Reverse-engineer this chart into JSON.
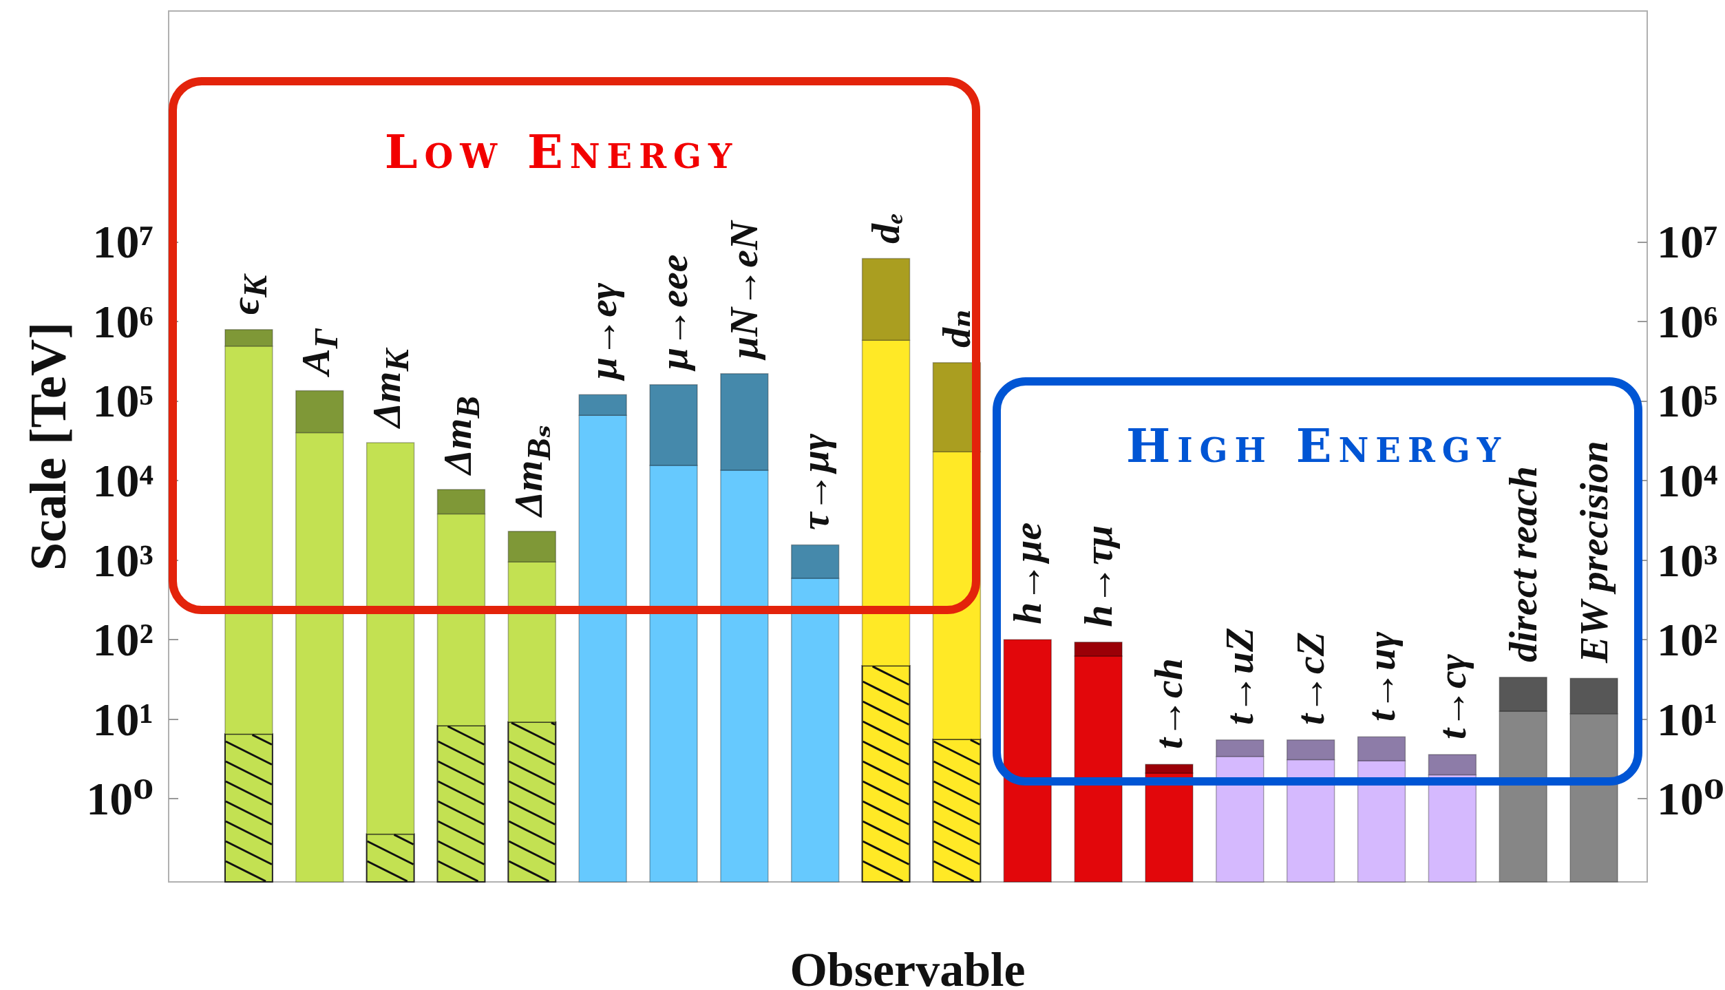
{
  "chart_data": {
    "type": "bar",
    "xlabel": "Observable",
    "ylabel": "Scale [TeV]",
    "categories": [
      "ϵ$_{K}$",
      "A$_{Γ}$",
      "Δm$_{K}$",
      "Δm$_{B}$",
      "Δm$_{Bₛ}$",
      "μ→eγ",
      "μ→eee",
      "μN→eN",
      "τ→μγ",
      "dₑ",
      "dₙ",
      "h→μe",
      "h→τμ",
      "t→ch",
      "t→uZ",
      "t→cZ",
      "t→uγ",
      "t→cγ",
      "direct reach",
      "EW precision"
    ],
    "stacked": true,
    "series": [
      {
        "colors": [
          "#c3e152",
          null,
          "#c3e152",
          "#c3e152",
          "#c3e152",
          null,
          null,
          null,
          null,
          "#ffe926",
          "#ffe926",
          null,
          null,
          null,
          null,
          null,
          null,
          null,
          null,
          null
        ],
        "values": [
          6.5,
          null,
          0.36,
          8.3,
          9.2,
          null,
          null,
          null,
          null,
          47,
          5.6,
          null,
          null,
          null,
          null,
          null,
          null,
          null,
          null,
          null
        ]
      },
      {
        "colors": [
          "#c3e152",
          "#c3e152",
          "#c3e152",
          "#c3e152",
          "#c3e152",
          "#66c9fe",
          "#66c9fe",
          "#66c9fe",
          "#66c9fe",
          "#ffe926",
          "#ffe926",
          "#e2070b",
          "#e2070b",
          "#e2070b",
          "#d5b9fe",
          "#d5b9fe",
          "#d5b9fe",
          "#d5b9fe",
          "#868686",
          "#868686"
        ],
        "values": [
          490000,
          40000,
          30000,
          3800,
          940,
          66000,
          15500,
          13500,
          590,
          580000,
          23000,
          100,
          62,
          2.1,
          3.4,
          3.1,
          3.0,
          2.0,
          12.6,
          11.7
        ]
      },
      {
        "colors": [
          "#7f9837",
          "#7f9837",
          null,
          "#7f9837",
          "#7f9837",
          "#4589ab",
          "#4589ab",
          "#4589ab",
          "#4589ab",
          "#aa9e20",
          "#aa9e20",
          null,
          "#9a0007",
          "#9a0007",
          "#8d7ca8",
          "#8d7ca8",
          "#8d7ca8",
          "#8d7ca8",
          "#575757",
          "#575757"
        ],
        "values": [
          300000,
          95000,
          null,
          3900,
          1350,
          54000,
          145000,
          207000,
          960,
          5600000,
          280000,
          null,
          31,
          0.6,
          2.1,
          2.4,
          3.0,
          1.6,
          21,
          21
        ]
      }
    ],
    "log": true,
    "ylim": [
      0.09,
      8000000000
    ],
    "yticks": [
      {
        "value": 1,
        "label": "10⁰"
      },
      {
        "value": 10,
        "label": "10¹"
      },
      {
        "value": 100,
        "label": "10²"
      },
      {
        "value": 1000,
        "label": "10³"
      },
      {
        "value": 10000,
        "label": "10⁴"
      },
      {
        "value": 100000,
        "label": "10⁵"
      },
      {
        "value": 1000000,
        "label": "10⁶"
      },
      {
        "value": 10000000,
        "label": "10⁷"
      }
    ],
    "annotations": [
      "Low Energy",
      "High Energy"
    ]
  }
}
